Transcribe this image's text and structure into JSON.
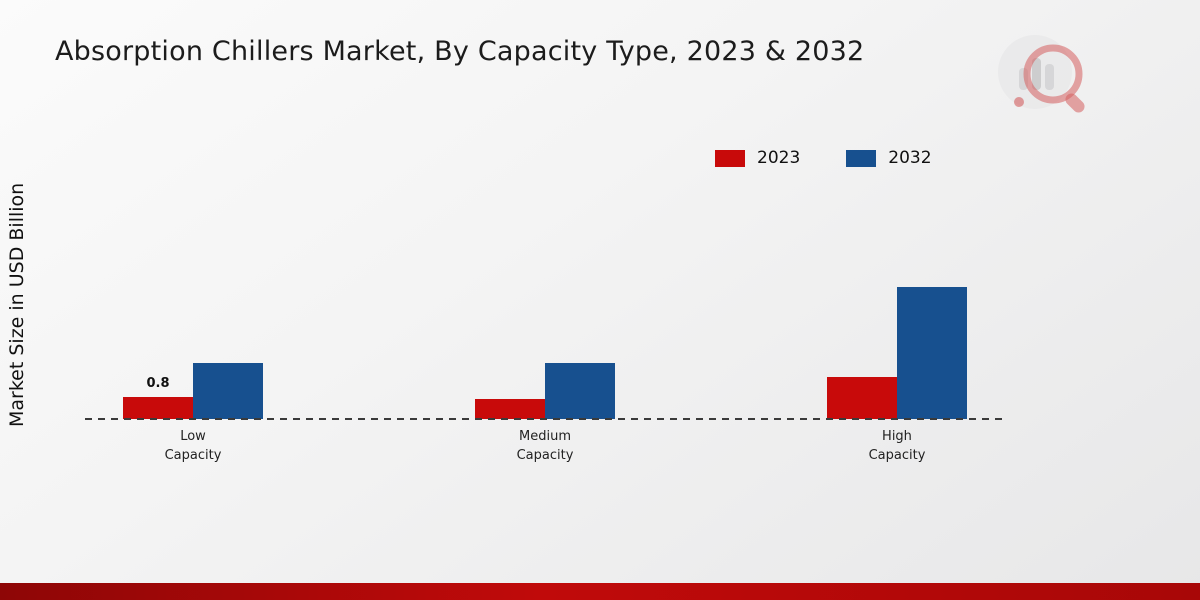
{
  "header": {
    "title": "Absorption Chillers Market, By Capacity Type, 2023 & 2032",
    "logo_icon": "chart-magnifier-logo"
  },
  "axis": {
    "ylabel": "Market Size in USD Billion"
  },
  "colors": {
    "series_2023": "#c80a0a",
    "series_2032": "#17508f",
    "footer_band": "#a80707"
  },
  "chart_data": {
    "type": "bar",
    "title": "Absorption Chillers Market, By Capacity Type, 2023 & 2032",
    "xlabel": "",
    "ylabel": "Market Size in USD Billion",
    "categories": [
      "Low Capacity",
      "Medium Capacity",
      "High Capacity"
    ],
    "series": [
      {
        "name": "2023",
        "color": "#c80a0a",
        "values": [
          0.8,
          0.7,
          1.5
        ]
      },
      {
        "name": "2032",
        "color": "#17508f",
        "values": [
          2.0,
          2.0,
          4.7
        ]
      }
    ],
    "ylim": [
      0,
      5
    ],
    "grid": false,
    "legend_position": "top-right",
    "annotations": [
      {
        "series_index": 0,
        "category_index": 0,
        "text": "0.8"
      }
    ]
  }
}
